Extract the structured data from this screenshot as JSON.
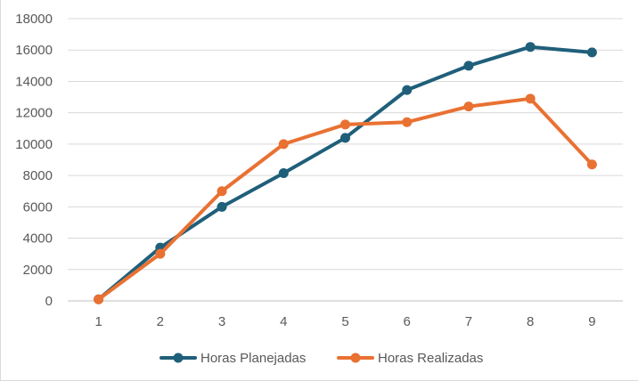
{
  "chart_data": {
    "type": "line",
    "title": "",
    "xlabel": "",
    "ylabel": "",
    "categories": [
      "1",
      "2",
      "3",
      "4",
      "5",
      "6",
      "7",
      "8",
      "9"
    ],
    "ylim": [
      0,
      18000
    ],
    "yticks": [
      0,
      2000,
      4000,
      6000,
      8000,
      10000,
      12000,
      14000,
      16000,
      18000
    ],
    "grid": "horizontal",
    "legend_position": "bottom",
    "series": [
      {
        "name": "Horas Planejadas",
        "color": "#1f5f7a",
        "marker": "circle",
        "values": [
          100,
          3400,
          6000,
          8150,
          10400,
          13450,
          15000,
          16200,
          15850
        ]
      },
      {
        "name": "Horas Realizadas",
        "color": "#e97132",
        "marker": "circle",
        "values": [
          100,
          3000,
          7000,
          10000,
          11250,
          11400,
          12400,
          12900,
          8700
        ]
      }
    ]
  }
}
